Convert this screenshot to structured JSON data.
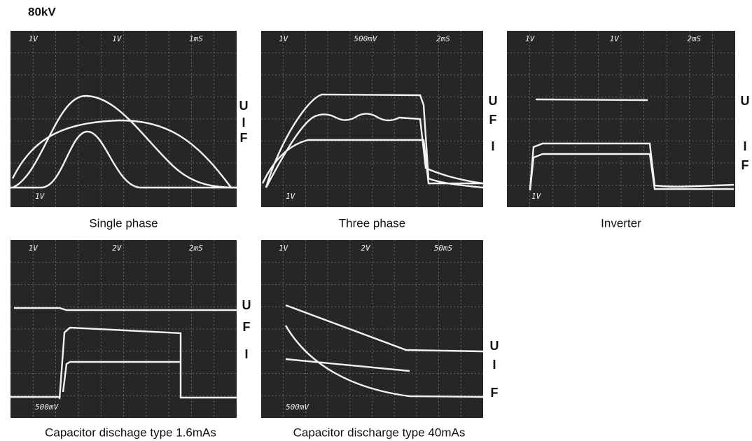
{
  "header": {
    "title": "80kV"
  },
  "panels": [
    {
      "caption": "Single phase",
      "scope_labels": [
        "1V",
        "1V",
        "1mS"
      ],
      "bottom_label": "1V",
      "trace_labels": [
        "U",
        "I",
        "F"
      ]
    },
    {
      "caption": "Three phase",
      "scope_labels": [
        "1V",
        "500mV",
        "2mS"
      ],
      "bottom_label": "1V",
      "trace_labels": [
        "U",
        "F",
        "I"
      ]
    },
    {
      "caption": "Inverter",
      "scope_labels": [
        "1V",
        "1V",
        "2mS"
      ],
      "bottom_label": "1V",
      "trace_labels": [
        "U",
        "I",
        "F"
      ]
    },
    {
      "caption": "Capacitor dischage type 1.6mAs",
      "scope_labels": [
        "1V",
        "2V",
        "2mS"
      ],
      "bottom_label": "500mV",
      "trace_labels": [
        "U",
        "F",
        "I"
      ]
    },
    {
      "caption": "Capacitor discharge type 40mAs",
      "scope_labels": [
        "1V",
        "2V",
        "50mS"
      ],
      "bottom_label": "500mV",
      "trace_labels": [
        "U",
        "I",
        "F"
      ]
    }
  ]
}
